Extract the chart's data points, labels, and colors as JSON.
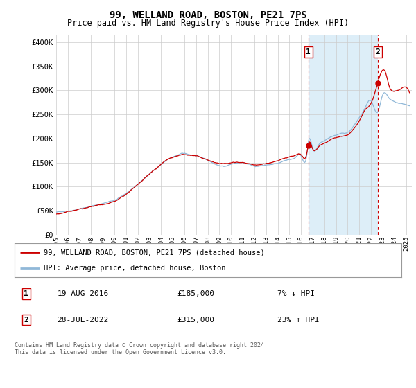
{
  "title": "99, WELLAND ROAD, BOSTON, PE21 7PS",
  "subtitle": "Price paid vs. HM Land Registry's House Price Index (HPI)",
  "ylabel_ticks": [
    "£0",
    "£50K",
    "£100K",
    "£150K",
    "£200K",
    "£250K",
    "£300K",
    "£350K",
    "£400K"
  ],
  "ytick_values": [
    0,
    50000,
    100000,
    150000,
    200000,
    250000,
    300000,
    350000,
    400000
  ],
  "ylim": [
    0,
    415000
  ],
  "xlim_start": 1995.0,
  "xlim_end": 2025.5,
  "hpi_color": "#90b8d8",
  "hpi_fill_color": "#ddeef8",
  "price_color": "#cc0000",
  "dashed_color": "#cc0000",
  "marker1_date": 2016.63,
  "marker1_price": 185000,
  "marker1_label": "19-AUG-2016",
  "marker1_amount": "£185,000",
  "marker1_pct": "7% ↓ HPI",
  "marker2_date": 2022.57,
  "marker2_price": 315000,
  "marker2_label": "28-JUL-2022",
  "marker2_amount": "£315,000",
  "marker2_pct": "23% ↑ HPI",
  "legend_line1": "99, WELLAND ROAD, BOSTON, PE21 7PS (detached house)",
  "legend_line2": "HPI: Average price, detached house, Boston",
  "footer": "Contains HM Land Registry data © Crown copyright and database right 2024.\nThis data is licensed under the Open Government Licence v3.0.",
  "xtick_years": [
    1995,
    1996,
    1997,
    1998,
    1999,
    2000,
    2001,
    2002,
    2003,
    2004,
    2005,
    2006,
    2007,
    2008,
    2009,
    2010,
    2011,
    2012,
    2013,
    2014,
    2015,
    2016,
    2017,
    2018,
    2019,
    2020,
    2021,
    2022,
    2023,
    2024,
    2025
  ]
}
